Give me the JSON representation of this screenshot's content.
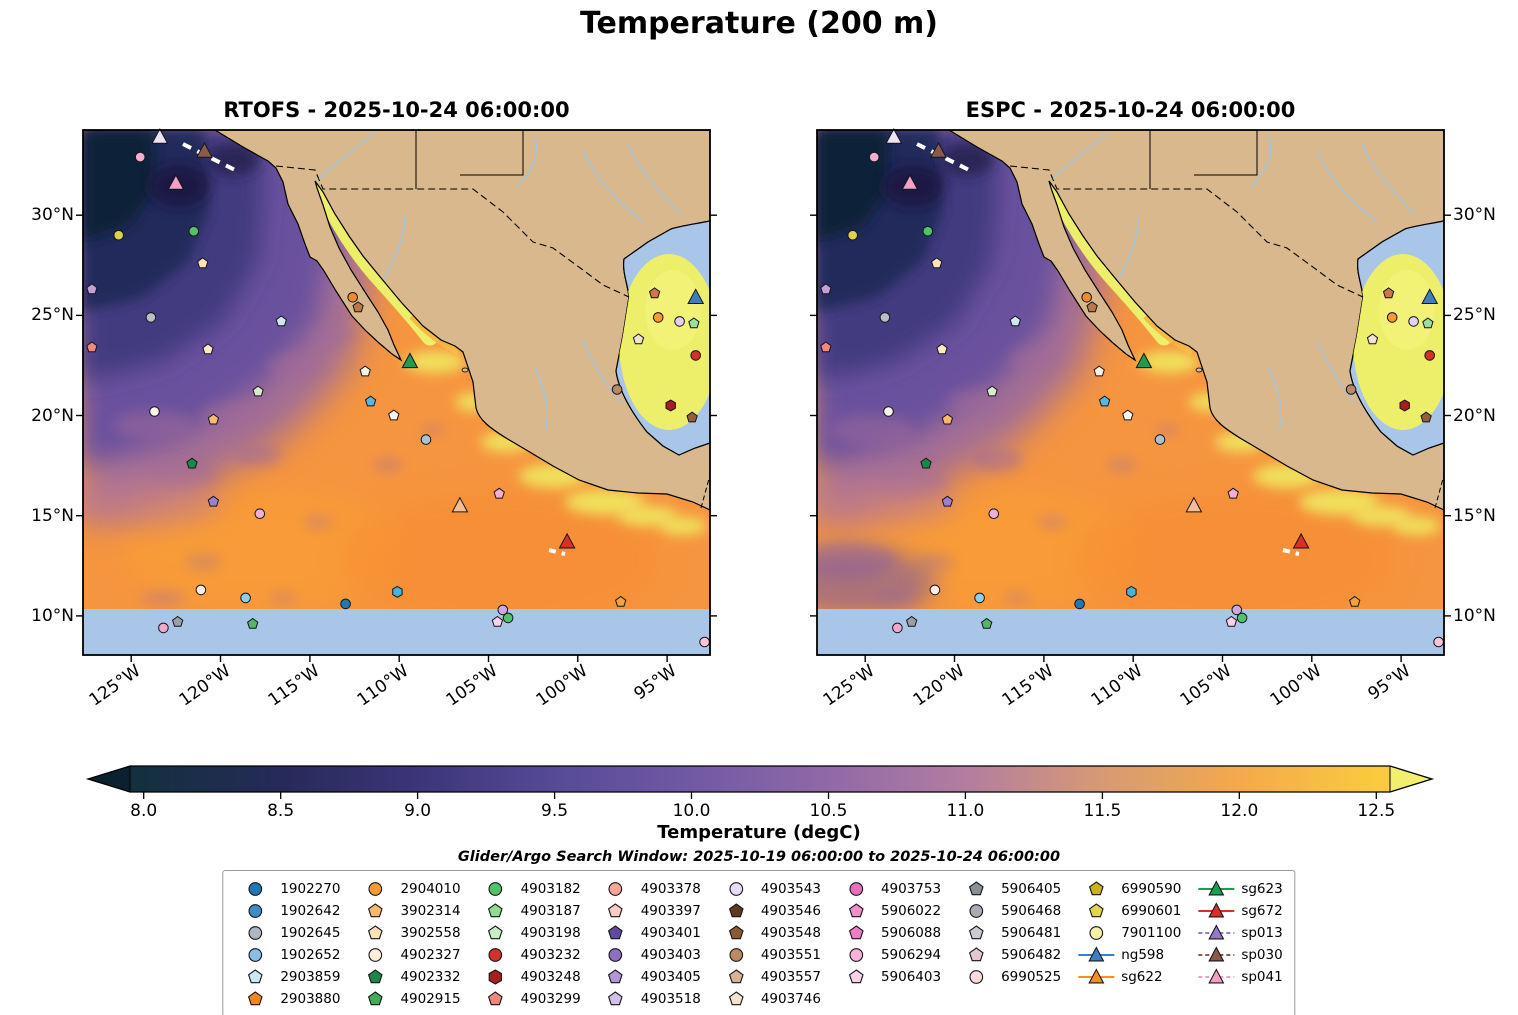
{
  "figure": {
    "title": "Temperature (200 m)"
  },
  "panels": [
    {
      "id": "rtofs",
      "title": "RTOFS - 2025-10-24 06:00:00"
    },
    {
      "id": "espc",
      "title": "ESPC - 2025-10-24 06:00:00"
    }
  ],
  "axes": {
    "x_tick_labels": [
      "125°W",
      "120°W",
      "115°W",
      "110°W",
      "105°W",
      "100°W",
      "95°W"
    ],
    "x_tick_lons_w": [
      125,
      120,
      115,
      110,
      105,
      100,
      95
    ],
    "y_tick_labels": [
      "10°N",
      "15°N",
      "20°N",
      "25°N",
      "30°N"
    ],
    "y_tick_lats_n": [
      10,
      15,
      20,
      25,
      30
    ]
  },
  "colorbar": {
    "label": "Temperature (degC)",
    "tick_labels": [
      "8.0",
      "8.5",
      "9.0",
      "9.5",
      "10.0",
      "10.5",
      "11.0",
      "11.5",
      "12.0",
      "12.5"
    ],
    "tick_values": [
      8.0,
      8.5,
      9.0,
      9.5,
      10.0,
      10.5,
      11.0,
      11.5,
      12.0,
      12.5
    ],
    "vmin": 7.95,
    "vmax": 12.55,
    "under_color": "#0b2130",
    "over_color": "#f1ef6d",
    "stops": [
      {
        "v": 8.0,
        "c": "#14303f"
      },
      {
        "v": 8.5,
        "c": "#262a58"
      },
      {
        "v": 9.0,
        "c": "#3c3579"
      },
      {
        "v": 9.5,
        "c": "#564a97"
      },
      {
        "v": 10.0,
        "c": "#7159a4"
      },
      {
        "v": 10.5,
        "c": "#9069a7"
      },
      {
        "v": 11.0,
        "c": "#b27da0"
      },
      {
        "v": 11.5,
        "c": "#d79a74"
      },
      {
        "v": 12.0,
        "c": "#f3a94c"
      },
      {
        "v": 12.5,
        "c": "#fbca3e"
      }
    ]
  },
  "annotations": {
    "search_window": "Glider/Argo Search Window: 2025-10-19 06:00:00 to 2025-10-24 06:00:00"
  },
  "map_colors": {
    "land": "#d8b88c",
    "nodata": "#a9c6e8",
    "river": "#9ec8e8",
    "base_ocean": "#f6953f"
  },
  "legend": {
    "columns": [
      [
        {
          "label": "1902270",
          "shape": "circle",
          "color": "#1f77b4"
        },
        {
          "label": "1902642",
          "shape": "circle",
          "color": "#3e8ec4"
        },
        {
          "label": "1902645",
          "shape": "circle",
          "color": "#aeb7c0"
        },
        {
          "label": "1902652",
          "shape": "circle",
          "color": "#86bee5"
        },
        {
          "label": "2903859",
          "shape": "pentagon",
          "color": "#cfe6f5"
        },
        {
          "label": "2903880",
          "shape": "pentagon",
          "color": "#f3871c"
        }
      ],
      [
        {
          "label": "2904010",
          "shape": "circle",
          "color": "#fb9a32"
        },
        {
          "label": "3902314",
          "shape": "pentagon",
          "color": "#fcb96c"
        },
        {
          "label": "3902558",
          "shape": "pentagon",
          "color": "#fde3b9"
        },
        {
          "label": "4902327",
          "shape": "circle",
          "color": "#fdeedd"
        },
        {
          "label": "4902332",
          "shape": "pentagon",
          "color": "#1d8649"
        },
        {
          "label": "4902915",
          "shape": "pentagon",
          "color": "#3fae57"
        }
      ],
      [
        {
          "label": "4903182",
          "shape": "circle",
          "color": "#52c268"
        },
        {
          "label": "4903187",
          "shape": "pentagon",
          "color": "#90dc90"
        },
        {
          "label": "4903198",
          "shape": "pentagon",
          "color": "#caefc5"
        },
        {
          "label": "4903232",
          "shape": "circle",
          "color": "#d6302b"
        },
        {
          "label": "4903248",
          "shape": "hexagon",
          "color": "#a81e1e"
        },
        {
          "label": "4903299",
          "shape": "pentagon",
          "color": "#f2887b"
        }
      ],
      [
        {
          "label": "4903378",
          "shape": "circle",
          "color": "#f9a69b"
        },
        {
          "label": "4903397",
          "shape": "pentagon",
          "color": "#fccbc2"
        },
        {
          "label": "4903401",
          "shape": "pentagon",
          "color": "#5f4aa0"
        },
        {
          "label": "4903403",
          "shape": "circle",
          "color": "#8d6fc0"
        },
        {
          "label": "4903405",
          "shape": "pentagon",
          "color": "#b495d6"
        },
        {
          "label": "4903518",
          "shape": "pentagon",
          "color": "#d3bfe8"
        }
      ],
      [
        {
          "label": "4903543",
          "shape": "circle",
          "color": "#e9dcf4"
        },
        {
          "label": "4903546",
          "shape": "pentagon",
          "color": "#5e3a22"
        },
        {
          "label": "4903548",
          "shape": "pentagon",
          "color": "#8a5a35"
        },
        {
          "label": "4903551",
          "shape": "circle",
          "color": "#b98a64"
        },
        {
          "label": "4903557",
          "shape": "pentagon",
          "color": "#d7b294"
        },
        {
          "label": "4903746",
          "shape": "pentagon",
          "color": "#f1e3cd"
        }
      ],
      [
        {
          "label": "4903753",
          "shape": "circle",
          "color": "#e670bc"
        },
        {
          "label": "5906022",
          "shape": "pentagon",
          "color": "#f08fcb"
        },
        {
          "label": "5906088",
          "shape": "pentagon",
          "color": "#ef7fc4"
        },
        {
          "label": "5906294",
          "shape": "circle",
          "color": "#f7b2da"
        },
        {
          "label": "5906403",
          "shape": "pentagon",
          "color": "#fbd3e8"
        }
      ],
      [
        {
          "label": "5906405",
          "shape": "pentagon",
          "color": "#8b9097"
        },
        {
          "label": "5906468",
          "shape": "circle",
          "color": "#a8adb3"
        },
        {
          "label": "5906481",
          "shape": "pentagon",
          "color": "#c9ccd1"
        },
        {
          "label": "5906482",
          "shape": "pentagon",
          "color": "#e3c9ce"
        },
        {
          "label": "6990525",
          "shape": "circle",
          "color": "#fbdcdc"
        }
      ],
      [
        {
          "label": "6990590",
          "shape": "pentagon",
          "color": "#c9b31e"
        },
        {
          "label": "6990601",
          "shape": "pentagon",
          "color": "#e3d44e"
        },
        {
          "label": "7901100",
          "shape": "circle",
          "color": "#f7f0a8"
        },
        {
          "label": "ng598",
          "shape": "triangle",
          "color": "#3f7fc1",
          "line": "solid"
        },
        {
          "label": "sg622",
          "shape": "triangle",
          "color": "#fb8f1d",
          "line": "solid"
        }
      ],
      [
        {
          "label": "sg623",
          "shape": "triangle",
          "color": "#1f9c4e",
          "line": "solid"
        },
        {
          "label": "sg672",
          "shape": "triangle",
          "color": "#d93025",
          "line": "solid"
        },
        {
          "label": "sp013",
          "shape": "triangle",
          "color": "#9678c8",
          "line": "dashed"
        },
        {
          "label": "sp030",
          "shape": "triangle",
          "color": "#8a5a4a",
          "line": "dashed"
        },
        {
          "label": "sp041",
          "shape": "triangle",
          "color": "#f2a0c6",
          "line": "dashed"
        }
      ]
    ]
  },
  "chart_data": {
    "type": "heatmap",
    "subtype": "two-panel filled-contour geographic model comparison with shared colorbar",
    "variable": "Ocean temperature at 200 m depth (degC)",
    "panel_titles": [
      "RTOFS - 2025-10-24 06:00:00",
      "ESPC - 2025-10-24 06:00:00"
    ],
    "lon_extent_deg_west": [
      127.7,
      92.6
    ],
    "lat_extent_deg_north": [
      8.05,
      34.25
    ],
    "color_scale": {
      "min": 8.0,
      "max": 12.5,
      "step": 0.5,
      "extended_both_ends": true
    },
    "field_summary": [
      "Coldest water (~8-9.5 degC, near-black navy to purple) fills the NW Pacific corner north of ~25N and west of ~115W",
      "Purple-to-orange transition band (~10-11 degC) runs diagonally from lower-left offshore toward upper-right along the Baja coast",
      "Most of the tropical/subtropical open Pacific is ~11.5-12 degC (orange) with small purple mottles",
      "Northern Gulf of California and the Mexican coastal band are warmest, >12.5 degC (bright yellow)",
      "Gulf of Mexico core is a >12.5 degC yellow blob ringed by out-of-range light blue",
      "Band south of ~10N is light blue (outside color range / no data)"
    ],
    "observations": [
      {
        "lon": 124.5,
        "lat": 32.9,
        "shape": "circle",
        "color": "#f4aed2"
      },
      {
        "lon": 123.4,
        "lat": 33.9,
        "shape": "triangle",
        "color": "#ece4f4",
        "glider": true
      },
      {
        "lon": 120.9,
        "lat": 33.2,
        "shape": "triangle",
        "color": "#8a5a4a",
        "glider": true
      },
      {
        "lon": 122.5,
        "lat": 31.6,
        "shape": "triangle",
        "color": "#f2a0c6",
        "glider": true
      },
      {
        "lon": 125.7,
        "lat": 29.0,
        "shape": "circle",
        "color": "#ddd04a"
      },
      {
        "lon": 121.5,
        "lat": 29.2,
        "shape": "circle",
        "color": "#52c268"
      },
      {
        "lon": 121.0,
        "lat": 27.6,
        "shape": "pentagon",
        "color": "#fde3b9"
      },
      {
        "lon": 127.2,
        "lat": 26.3,
        "shape": "pentagon",
        "color": "#c3a0d8"
      },
      {
        "lon": 123.9,
        "lat": 24.9,
        "shape": "circle",
        "color": "#b9bfc9"
      },
      {
        "lon": 116.6,
        "lat": 24.7,
        "shape": "pentagon",
        "color": "#cfe6f5"
      },
      {
        "lon": 127.2,
        "lat": 23.4,
        "shape": "pentagon",
        "color": "#f2887b"
      },
      {
        "lon": 120.7,
        "lat": 23.3,
        "shape": "pentagon",
        "color": "#fde9c8"
      },
      {
        "lon": 112.6,
        "lat": 25.9,
        "shape": "circle",
        "color": "#f08a30"
      },
      {
        "lon": 112.3,
        "lat": 25.4,
        "shape": "pentagon",
        "color": "#b97a4a"
      },
      {
        "lon": 111.9,
        "lat": 22.2,
        "shape": "pentagon",
        "color": "#f8f2e2"
      },
      {
        "lon": 109.4,
        "lat": 22.7,
        "shape": "triangle",
        "color": "#1f9c4e",
        "glider": true
      },
      {
        "lon": 117.9,
        "lat": 21.2,
        "shape": "pentagon",
        "color": "#d9ead0"
      },
      {
        "lon": 111.6,
        "lat": 20.7,
        "shape": "pentagon",
        "color": "#58b7e0"
      },
      {
        "lon": 110.3,
        "lat": 20.0,
        "shape": "pentagon",
        "color": "#fbf6ee"
      },
      {
        "lon": 123.7,
        "lat": 20.2,
        "shape": "circle",
        "color": "#fdf6ec"
      },
      {
        "lon": 120.4,
        "lat": 19.8,
        "shape": "pentagon",
        "color": "#fcb96c"
      },
      {
        "lon": 108.5,
        "lat": 18.8,
        "shape": "circle",
        "color": "#a9c3d4"
      },
      {
        "lon": 121.6,
        "lat": 17.6,
        "shape": "pentagon",
        "color": "#1d8649"
      },
      {
        "lon": 120.4,
        "lat": 15.7,
        "shape": "pentagon",
        "color": "#9c7fce"
      },
      {
        "lon": 117.8,
        "lat": 15.1,
        "shape": "circle",
        "color": "#f2aed4"
      },
      {
        "lon": 106.6,
        "lat": 15.5,
        "shape": "triangle",
        "color": "#f3bd9a",
        "glider": true
      },
      {
        "lon": 104.4,
        "lat": 16.1,
        "shape": "pentagon",
        "color": "#f4aed0"
      },
      {
        "lon": 100.6,
        "lat": 13.7,
        "shape": "triangle",
        "color": "#d93025",
        "glider": true
      },
      {
        "lon": 121.1,
        "lat": 11.3,
        "shape": "circle",
        "color": "#fdeedd"
      },
      {
        "lon": 118.6,
        "lat": 10.9,
        "shape": "circle",
        "color": "#8fd0e8"
      },
      {
        "lon": 113.0,
        "lat": 10.6,
        "shape": "circle",
        "color": "#1f77b4"
      },
      {
        "lon": 110.1,
        "lat": 11.2,
        "shape": "hexagon",
        "color": "#49b2d8"
      },
      {
        "lon": 123.2,
        "lat": 9.4,
        "shape": "circle",
        "color": "#f2a8cc"
      },
      {
        "lon": 122.4,
        "lat": 9.7,
        "shape": "pentagon",
        "color": "#9aa0a6"
      },
      {
        "lon": 118.2,
        "lat": 9.6,
        "shape": "pentagon",
        "color": "#57b56a"
      },
      {
        "lon": 104.2,
        "lat": 10.3,
        "shape": "circle",
        "color": "#cdaade"
      },
      {
        "lon": 104.5,
        "lat": 9.7,
        "shape": "pentagon",
        "color": "#fbd3e8"
      },
      {
        "lon": 103.9,
        "lat": 9.9,
        "shape": "circle",
        "color": "#52c268"
      },
      {
        "lon": 97.6,
        "lat": 10.7,
        "shape": "pentagon",
        "color": "#eda63c"
      },
      {
        "lon": 92.9,
        "lat": 8.7,
        "shape": "circle",
        "color": "#f9c6d8"
      },
      {
        "lon": 95.7,
        "lat": 26.1,
        "shape": "pentagon",
        "color": "#cd7848"
      },
      {
        "lon": 93.4,
        "lat": 25.9,
        "shape": "triangle",
        "color": "#3f7fc1",
        "glider": true
      },
      {
        "lon": 95.5,
        "lat": 24.9,
        "shape": "circle",
        "color": "#fb9a32"
      },
      {
        "lon": 94.3,
        "lat": 24.7,
        "shape": "circle",
        "color": "#e3d0f2"
      },
      {
        "lon": 93.5,
        "lat": 24.6,
        "shape": "pentagon",
        "color": "#9adf9f"
      },
      {
        "lon": 96.6,
        "lat": 23.8,
        "shape": "pentagon",
        "color": "#f1e3cd"
      },
      {
        "lon": 93.4,
        "lat": 23.0,
        "shape": "circle",
        "color": "#d6302b"
      },
      {
        "lon": 97.8,
        "lat": 21.3,
        "shape": "circle",
        "color": "#b98a64"
      },
      {
        "lon": 94.8,
        "lat": 20.5,
        "shape": "hexagon",
        "color": "#a81e1e"
      },
      {
        "lon": 93.6,
        "lat": 19.9,
        "shape": "pentagon",
        "color": "#93603c"
      }
    ]
  }
}
